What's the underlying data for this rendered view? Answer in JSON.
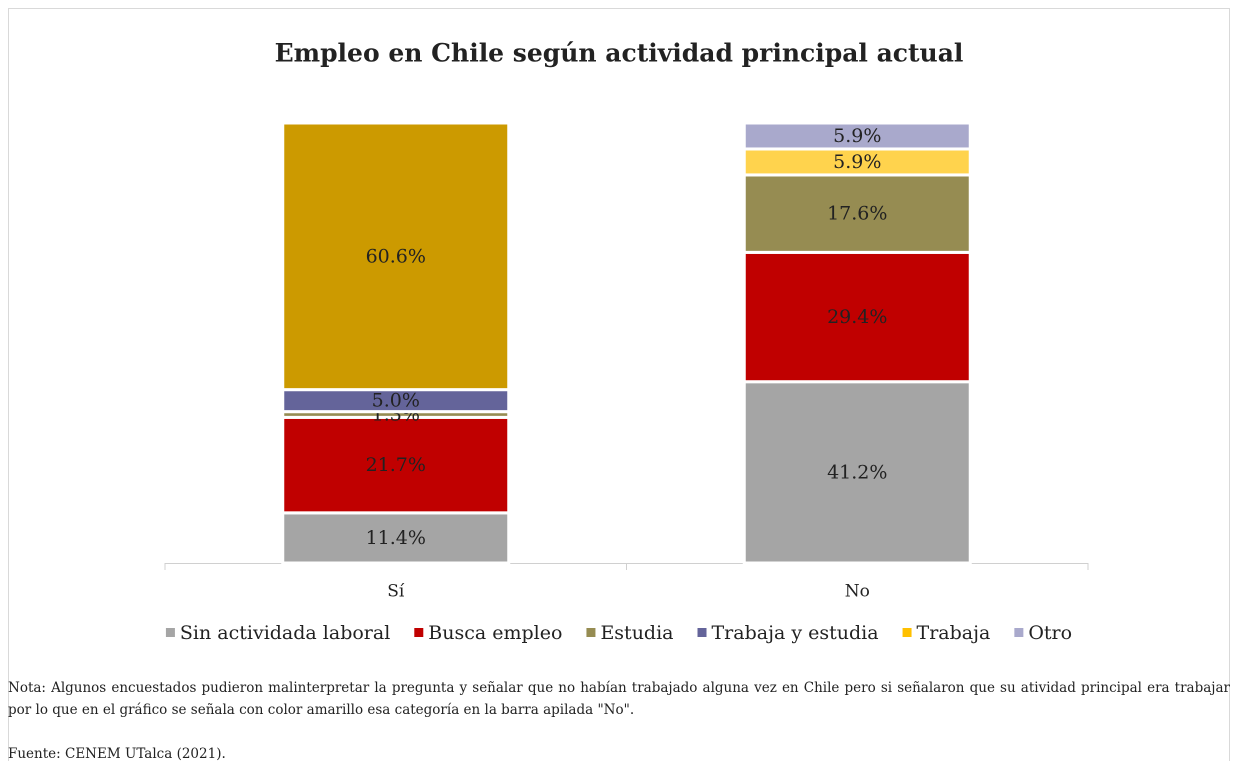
{
  "chart_data": {
    "type": "stacked_bar",
    "title": "Empleo en Chile según actividad principal actual",
    "categories": [
      "Sí",
      "No"
    ],
    "ylim": [
      0,
      100
    ],
    "legend": "bottom",
    "series": [
      {
        "name": "Sin actividada laboral",
        "color": "#a5a5a5",
        "values": [
          11.4,
          41.2
        ],
        "value_labels": [
          "11.4%",
          "41.2%"
        ]
      },
      {
        "name": "Busca empleo",
        "color": "#c00000",
        "values": [
          21.7,
          29.4
        ],
        "value_labels": [
          "21.7%",
          "29.4%"
        ]
      },
      {
        "name": "Estudia",
        "color": "#968c52",
        "values": [
          1.3,
          17.6
        ],
        "value_labels": [
          "1.3%",
          "17.6%"
        ]
      },
      {
        "name": "Trabaja y estudia",
        "color": "#64649a",
        "values": [
          5.0,
          null
        ],
        "value_labels": [
          "5.0%",
          null
        ]
      },
      {
        "name": "Trabaja",
        "color": "#ffc000",
        "point_colors": [
          "#cc9a00",
          "#ffd34d"
        ],
        "values": [
          60.6,
          5.9
        ],
        "value_labels": [
          "60.6%",
          "5.9%"
        ]
      },
      {
        "name": "Otro",
        "color": "#a9a9cc",
        "values": [
          null,
          5.9
        ],
        "value_labels": [
          null,
          "5.9%"
        ]
      }
    ]
  },
  "note": "Nota: Algunos encuestados pudieron malinterpretar la pregunta y señalar que no habían trabajado alguna vez en Chile pero si señalaron que su atividad principal era trabajar por lo que en el gráfico se señala con color amarillo esa categoría en la barra apilada \"No\".",
  "source": "Fuente: CENEM UTalca (2021)."
}
